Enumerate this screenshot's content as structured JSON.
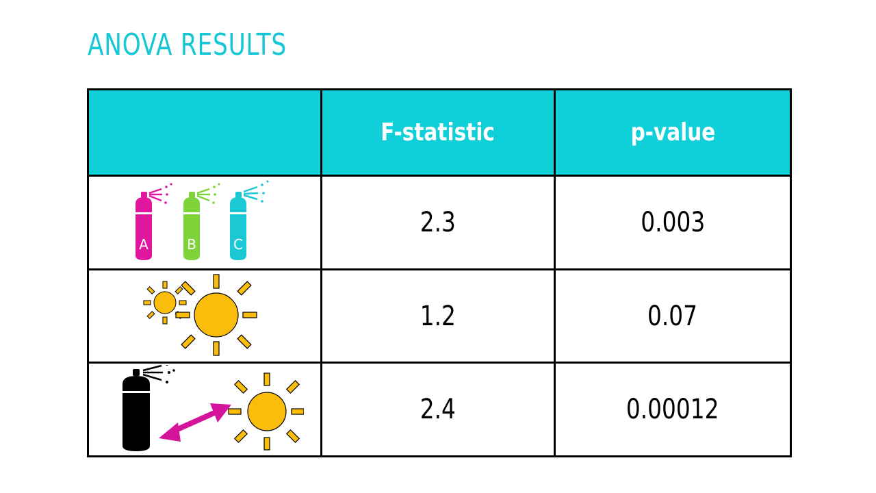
{
  "slide": {
    "title": "ANOVA RESULTS"
  },
  "table": {
    "headers": [
      "",
      "F-statistic",
      "p-value"
    ],
    "rows": [
      {
        "row_icon": "spray-cans-abc-icon",
        "can_labels": [
          "A",
          "B",
          "C"
        ],
        "f_statistic": "2.3",
        "p_value": "0.003"
      },
      {
        "row_icon": "two-suns-icon",
        "f_statistic": "1.2",
        "p_value": "0.07"
      },
      {
        "row_icon": "spray-can-sun-interaction-icon",
        "f_statistic": "2.4",
        "p_value": "0.00012"
      }
    ]
  },
  "colors": {
    "title": "#14c6d6",
    "header_fill": "#0fcfd9",
    "can_a": "#e0169f",
    "can_b": "#7ed23a",
    "can_c": "#1cc8d4",
    "sun": "#fbbd0c",
    "arrow": "#d4149a"
  }
}
